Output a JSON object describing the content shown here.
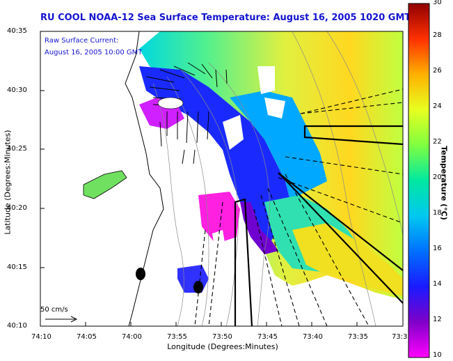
{
  "title": "RU COOL  NOAA-12  Sea Surface Temperature:  August 16, 2005 1020 GMT",
  "overlay": {
    "line1": "Raw Surface Current:",
    "line2": "August 16, 2005 10:00 GMT"
  },
  "axes": {
    "xlabel": "Longitude (Degrees:Minutes)",
    "ylabel": "Latitude (Degrees:Minutes)",
    "x_ticks": [
      "74:10",
      "74:05",
      "74:00",
      "73:55",
      "73:50",
      "73:45",
      "73:40",
      "73:35",
      "73:3"
    ],
    "y_ticks": [
      "40:35",
      "40:30",
      "40:25",
      "40:20",
      "40:15",
      "40:10"
    ]
  },
  "colorbar": {
    "label": "Temperature (°C)",
    "ticks": [
      "30",
      "28",
      "26",
      "24",
      "22",
      "20",
      "18",
      "16",
      "14",
      "12",
      "10"
    ],
    "range": [
      10,
      30
    ],
    "colors": [
      "#ff00ff",
      "#8000c8",
      "#1a1aff",
      "#00a0ff",
      "#00e0d0",
      "#50ff80",
      "#d0ff30",
      "#ffe000",
      "#ff8000",
      "#ff0000",
      "#900000"
    ]
  },
  "scale_label": "50 cm/s",
  "colors": {
    "title": "#1515d0",
    "coast": "#000000",
    "land": "#ffffff"
  }
}
